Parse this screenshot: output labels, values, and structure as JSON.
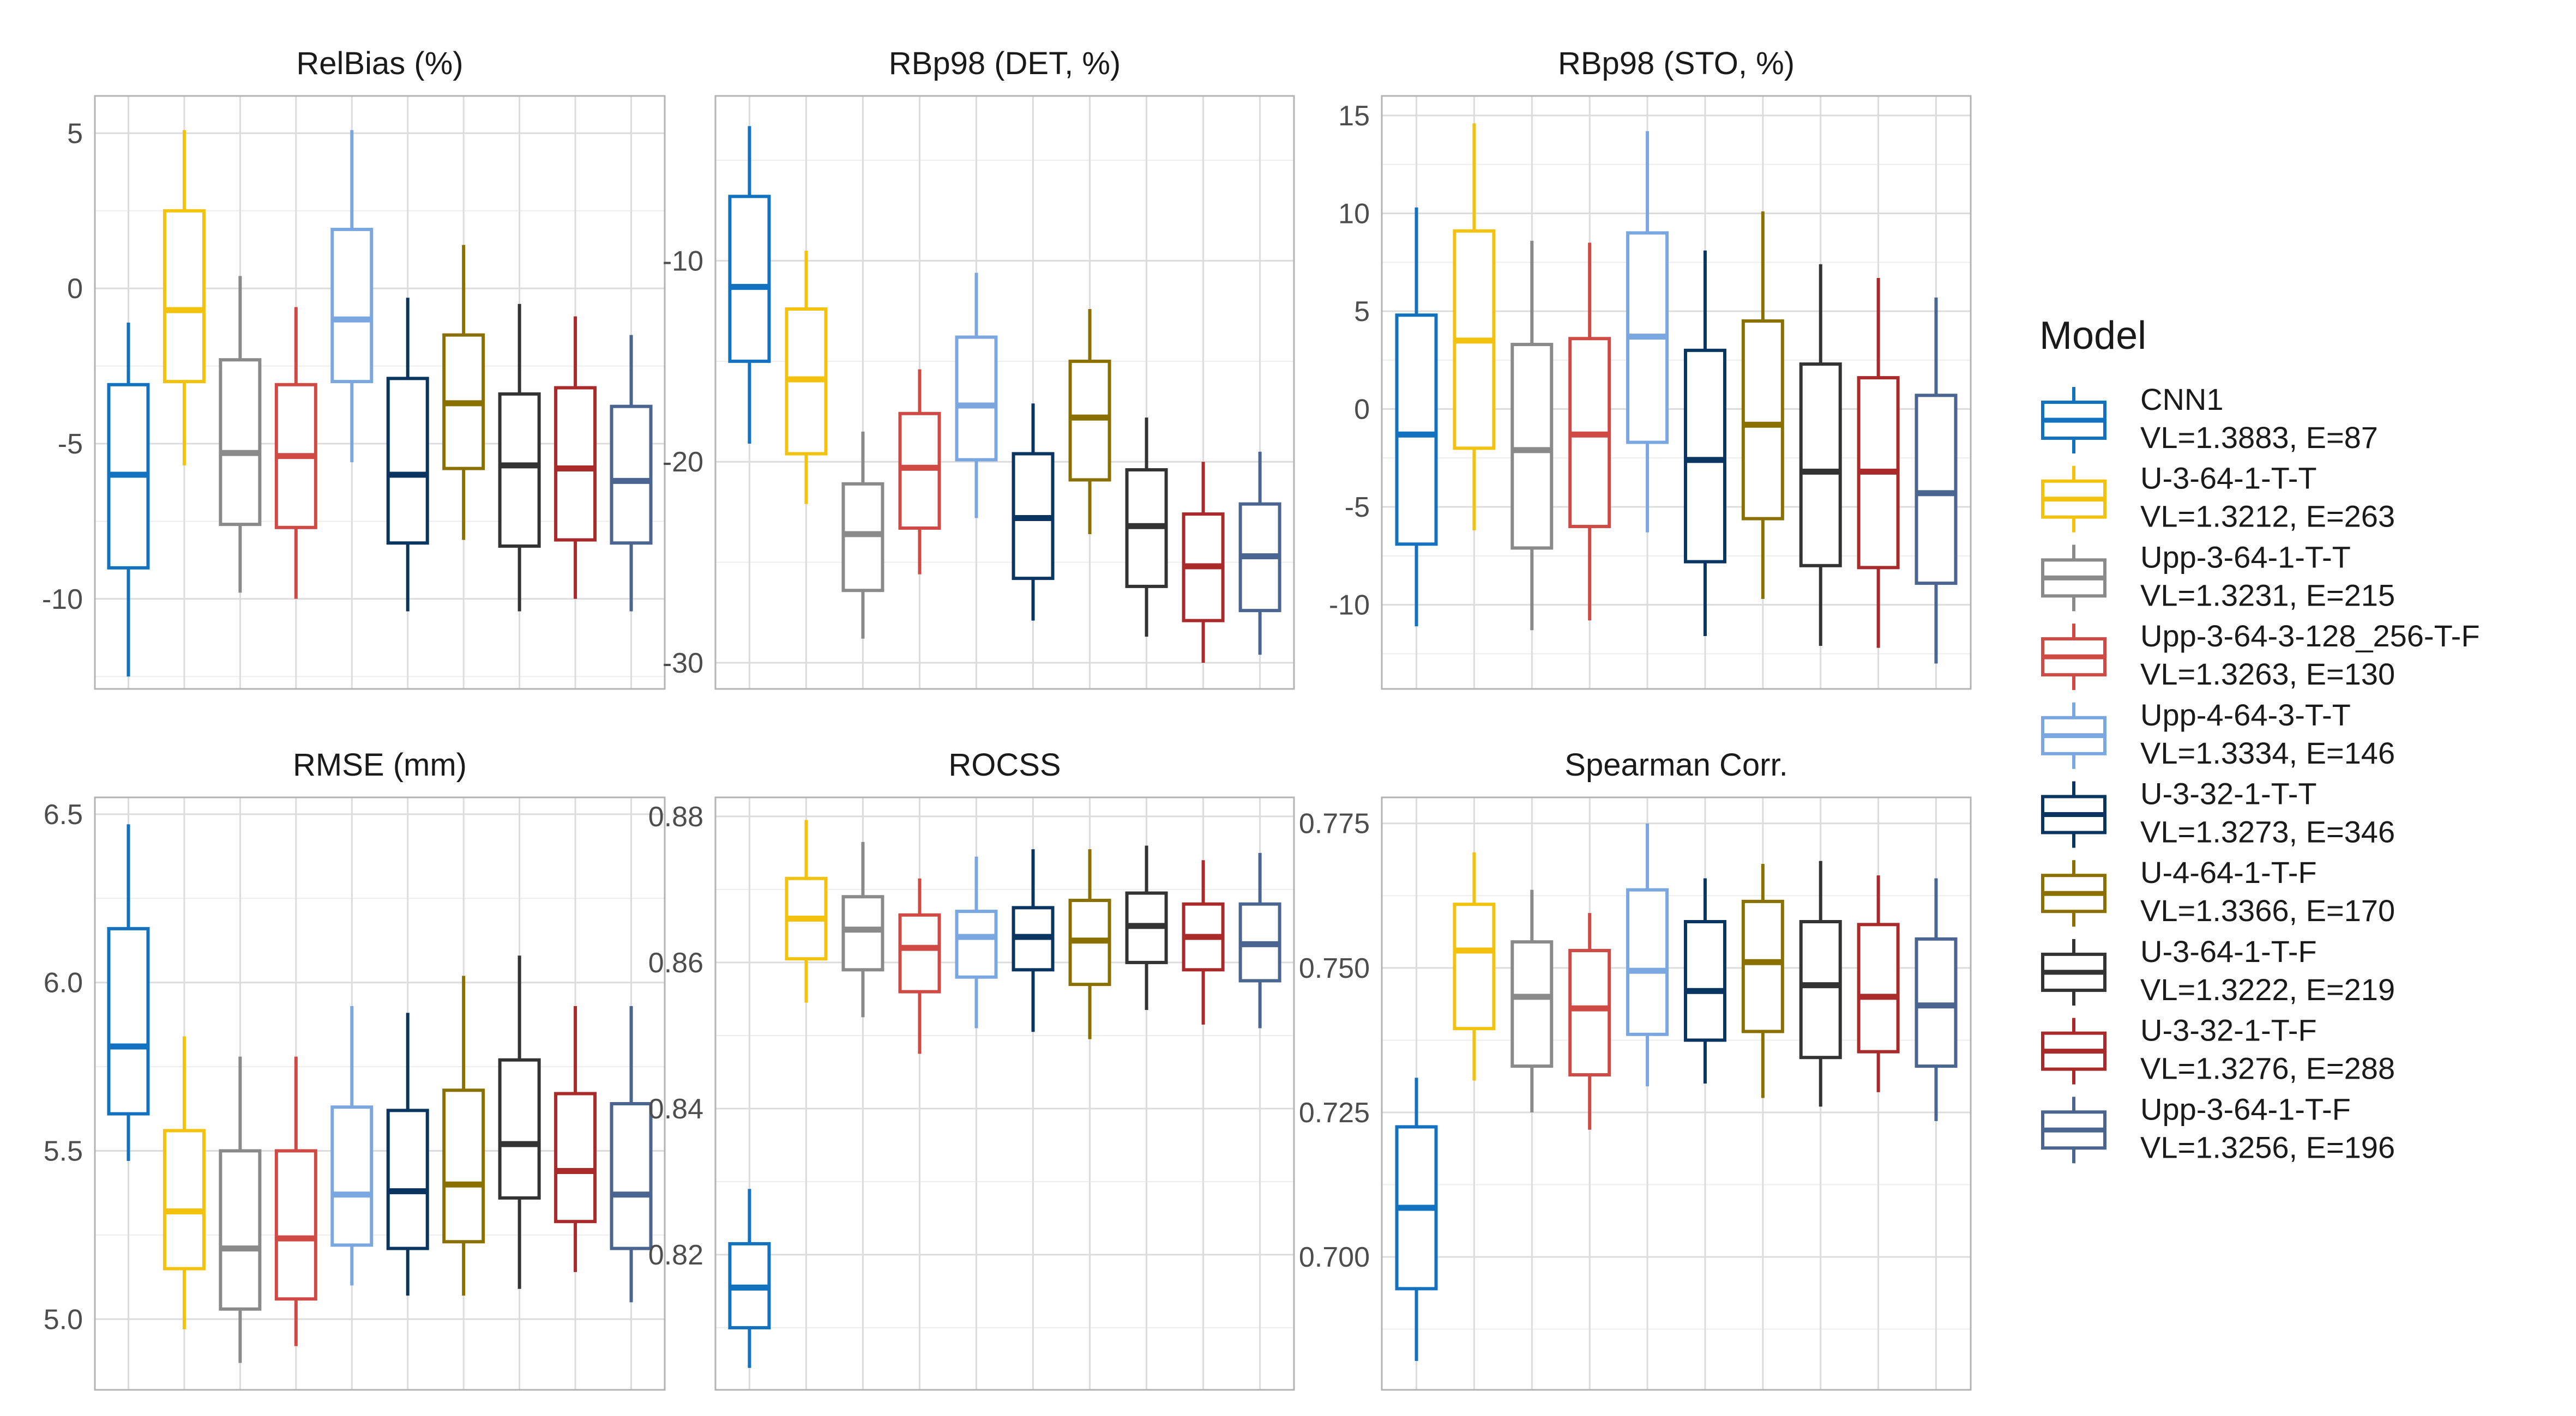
{
  "legend": {
    "title": "Model",
    "entries": [
      {
        "line1": "CNN1",
        "line2": "VL=1.3883, E=87",
        "color": "#1272c0"
      },
      {
        "line1": "U-3-64-1-T-T",
        "line2": "VL=1.3212, E=263",
        "color": "#f3c20e"
      },
      {
        "line1": "Upp-3-64-1-T-T",
        "line2": "VL=1.3231, E=215",
        "color": "#8a8a8a"
      },
      {
        "line1": "Upp-3-64-3-128_256-T-F",
        "line2": "VL=1.3263, E=130",
        "color": "#d04a45"
      },
      {
        "line1": "Upp-4-64-3-T-T",
        "line2": "VL=1.3334, E=146",
        "color": "#7ba7e0"
      },
      {
        "line1": "U-3-32-1-T-T",
        "line2": "VL=1.3273, E=346",
        "color": "#0a3560"
      },
      {
        "line1": "U-4-64-1-T-F",
        "line2": "VL=1.3366, E=170",
        "color": "#8a7000"
      },
      {
        "line1": "U-3-64-1-T-F",
        "line2": "VL=1.3222, E=219",
        "color": "#333333"
      },
      {
        "line1": "U-3-32-1-T-F",
        "line2": "VL=1.3276, E=288",
        "color": "#a82a2a"
      },
      {
        "line1": "Upp-3-64-1-T-F",
        "line2": "VL=1.3256, E=196",
        "color": "#4a6590"
      }
    ]
  },
  "chart_data": [
    {
      "type": "boxplot",
      "title": "RelBias (%)",
      "xlabel": "",
      "ylabel": "",
      "ylim": [
        -12.9,
        6.2
      ],
      "yticks": [
        -10,
        -5,
        0,
        5
      ],
      "ytick_labels": [
        "-10",
        "-5",
        "0",
        "5"
      ],
      "grid": true,
      "boxes": [
        {
          "series": "CNN1",
          "whisker_low": -12.5,
          "q1": -9.0,
          "median": -6.0,
          "q3": -3.1,
          "whisker_high": -1.1
        },
        {
          "series": "U-3-64-1-T-T",
          "whisker_low": -5.7,
          "q1": -3.0,
          "median": -0.7,
          "q3": 2.5,
          "whisker_high": 5.1
        },
        {
          "series": "Upp-3-64-1-T-T",
          "whisker_low": -9.8,
          "q1": -7.6,
          "median": -5.3,
          "q3": -2.3,
          "whisker_high": 0.4
        },
        {
          "series": "Upp-3-64-3-128_256-T-F",
          "whisker_low": -10.0,
          "q1": -7.7,
          "median": -5.4,
          "q3": -3.1,
          "whisker_high": -0.6
        },
        {
          "series": "Upp-4-64-3-T-T",
          "whisker_low": -5.6,
          "q1": -3.0,
          "median": -1.0,
          "q3": 1.9,
          "whisker_high": 5.1
        },
        {
          "series": "U-3-32-1-T-T",
          "whisker_low": -10.4,
          "q1": -8.2,
          "median": -6.0,
          "q3": -2.9,
          "whisker_high": -0.3
        },
        {
          "series": "U-4-64-1-T-F",
          "whisker_low": -8.1,
          "q1": -5.8,
          "median": -3.7,
          "q3": -1.5,
          "whisker_high": 1.4
        },
        {
          "series": "U-3-64-1-T-F",
          "whisker_low": -10.4,
          "q1": -8.3,
          "median": -5.7,
          "q3": -3.4,
          "whisker_high": -0.5
        },
        {
          "series": "U-3-32-1-T-F",
          "whisker_low": -10.0,
          "q1": -8.1,
          "median": -5.8,
          "q3": -3.2,
          "whisker_high": -0.9
        },
        {
          "series": "Upp-3-64-1-T-F",
          "whisker_low": -10.4,
          "q1": -8.2,
          "median": -6.2,
          "q3": -3.8,
          "whisker_high": -1.5
        }
      ]
    },
    {
      "type": "boxplot",
      "title": "RBp98 (DET, %)",
      "xlabel": "",
      "ylabel": "",
      "ylim": [
        -31.3,
        -1.8
      ],
      "yticks": [
        -30,
        -20,
        -10
      ],
      "ytick_labels": [
        "-30",
        "-20",
        "-10"
      ],
      "grid": true,
      "boxes": [
        {
          "series": "CNN1",
          "whisker_low": -19.1,
          "q1": -15.0,
          "median": -11.3,
          "q3": -6.8,
          "whisker_high": -3.3
        },
        {
          "series": "U-3-64-1-T-T",
          "whisker_low": -22.1,
          "q1": -19.6,
          "median": -15.9,
          "q3": -12.4,
          "whisker_high": -9.5
        },
        {
          "series": "Upp-3-64-1-T-T",
          "whisker_low": -28.8,
          "q1": -26.4,
          "median": -23.6,
          "q3": -21.1,
          "whisker_high": -18.5
        },
        {
          "series": "Upp-3-64-3-128_256-T-F",
          "whisker_low": -25.6,
          "q1": -23.3,
          "median": -20.3,
          "q3": -17.6,
          "whisker_high": -15.4
        },
        {
          "series": "Upp-4-64-3-T-T",
          "whisker_low": -22.8,
          "q1": -19.9,
          "median": -17.2,
          "q3": -13.8,
          "whisker_high": -10.6
        },
        {
          "series": "U-3-32-1-T-T",
          "whisker_low": -27.9,
          "q1": -25.8,
          "median": -22.8,
          "q3": -19.6,
          "whisker_high": -17.1
        },
        {
          "series": "U-4-64-1-T-F",
          "whisker_low": -23.6,
          "q1": -20.9,
          "median": -17.8,
          "q3": -15.0,
          "whisker_high": -12.4
        },
        {
          "series": "U-3-64-1-T-F",
          "whisker_low": -28.7,
          "q1": -26.2,
          "median": -23.2,
          "q3": -20.4,
          "whisker_high": -17.8
        },
        {
          "series": "U-3-32-1-T-F",
          "whisker_low": -30.0,
          "q1": -27.9,
          "median": -25.2,
          "q3": -22.6,
          "whisker_high": -20.0
        },
        {
          "series": "Upp-3-64-1-T-F",
          "whisker_low": -29.6,
          "q1": -27.4,
          "median": -24.7,
          "q3": -22.1,
          "whisker_high": -19.5
        }
      ]
    },
    {
      "type": "boxplot",
      "title": "RBp98 (STO, %)",
      "xlabel": "",
      "ylabel": "",
      "ylim": [
        -14.3,
        16.0
      ],
      "yticks": [
        -10,
        -5,
        0,
        5,
        10,
        15
      ],
      "ytick_labels": [
        "-10",
        "-5",
        "0",
        "5",
        "10",
        "15"
      ],
      "grid": true,
      "boxes": [
        {
          "series": "CNN1",
          "whisker_low": -11.1,
          "q1": -6.9,
          "median": -1.3,
          "q3": 4.8,
          "whisker_high": 10.3
        },
        {
          "series": "U-3-64-1-T-T",
          "whisker_low": -6.2,
          "q1": -2.0,
          "median": 3.5,
          "q3": 9.1,
          "whisker_high": 14.6
        },
        {
          "series": "Upp-3-64-1-T-T",
          "whisker_low": -11.3,
          "q1": -7.1,
          "median": -2.1,
          "q3": 3.3,
          "whisker_high": 8.6
        },
        {
          "series": "Upp-3-64-3-128_256-T-F",
          "whisker_low": -10.8,
          "q1": -6.0,
          "median": -1.3,
          "q3": 3.6,
          "whisker_high": 8.5
        },
        {
          "series": "Upp-4-64-3-T-T",
          "whisker_low": -6.3,
          "q1": -1.7,
          "median": 3.7,
          "q3": 9.0,
          "whisker_high": 14.2
        },
        {
          "series": "U-3-32-1-T-T",
          "whisker_low": -11.6,
          "q1": -7.8,
          "median": -2.6,
          "q3": 3.0,
          "whisker_high": 8.1
        },
        {
          "series": "U-4-64-1-T-F",
          "whisker_low": -9.7,
          "q1": -5.6,
          "median": -0.8,
          "q3": 4.5,
          "whisker_high": 10.1
        },
        {
          "series": "U-3-64-1-T-F",
          "whisker_low": -12.1,
          "q1": -8.0,
          "median": -3.2,
          "q3": 2.3,
          "whisker_high": 7.4
        },
        {
          "series": "U-3-32-1-T-F",
          "whisker_low": -12.2,
          "q1": -8.1,
          "median": -3.2,
          "q3": 1.6,
          "whisker_high": 6.7
        },
        {
          "series": "Upp-3-64-1-T-F",
          "whisker_low": -13.0,
          "q1": -8.9,
          "median": -4.3,
          "q3": 0.7,
          "whisker_high": 5.7
        }
      ]
    },
    {
      "type": "boxplot",
      "title": "RMSE (mm)",
      "xlabel": "",
      "ylabel": "",
      "ylim": [
        4.79,
        6.55
      ],
      "yticks": [
        5.0,
        5.5,
        6.0,
        6.5
      ],
      "ytick_labels": [
        "5.0",
        "5.5",
        "6.0",
        "6.5"
      ],
      "grid": true,
      "boxes": [
        {
          "series": "CNN1",
          "whisker_low": 5.47,
          "q1": 5.61,
          "median": 5.81,
          "q3": 6.16,
          "whisker_high": 6.47
        },
        {
          "series": "U-3-64-1-T-T",
          "whisker_low": 4.97,
          "q1": 5.15,
          "median": 5.32,
          "q3": 5.56,
          "whisker_high": 5.84
        },
        {
          "series": "Upp-3-64-1-T-T",
          "whisker_low": 4.87,
          "q1": 5.03,
          "median": 5.21,
          "q3": 5.5,
          "whisker_high": 5.78
        },
        {
          "series": "Upp-3-64-3-128_256-T-F",
          "whisker_low": 4.92,
          "q1": 5.06,
          "median": 5.24,
          "q3": 5.5,
          "whisker_high": 5.78
        },
        {
          "series": "Upp-4-64-3-T-T",
          "whisker_low": 5.1,
          "q1": 5.22,
          "median": 5.37,
          "q3": 5.63,
          "whisker_high": 5.93
        },
        {
          "series": "U-3-32-1-T-T",
          "whisker_low": 5.07,
          "q1": 5.21,
          "median": 5.38,
          "q3": 5.62,
          "whisker_high": 5.91
        },
        {
          "series": "U-4-64-1-T-F",
          "whisker_low": 5.07,
          "q1": 5.23,
          "median": 5.4,
          "q3": 5.68,
          "whisker_high": 6.02
        },
        {
          "series": "U-3-64-1-T-F",
          "whisker_low": 5.09,
          "q1": 5.36,
          "median": 5.52,
          "q3": 5.77,
          "whisker_high": 6.08
        },
        {
          "series": "U-3-32-1-T-F",
          "whisker_low": 5.14,
          "q1": 5.29,
          "median": 5.44,
          "q3": 5.67,
          "whisker_high": 5.93
        },
        {
          "series": "Upp-3-64-1-T-F",
          "whisker_low": 5.05,
          "q1": 5.21,
          "median": 5.37,
          "q3": 5.64,
          "whisker_high": 5.93
        }
      ]
    },
    {
      "type": "boxplot",
      "title": "ROCSS",
      "xlabel": "",
      "ylabel": "",
      "ylim": [
        0.8015,
        0.8826
      ],
      "yticks": [
        0.82,
        0.84,
        0.86,
        0.88
      ],
      "ytick_labels": [
        "0.82",
        "0.84",
        "0.86",
        "0.88"
      ],
      "grid": true,
      "boxes": [
        {
          "series": "CNN1",
          "whisker_low": 0.8045,
          "q1": 0.81,
          "median": 0.8155,
          "q3": 0.8215,
          "whisker_high": 0.829
        },
        {
          "series": "U-3-64-1-T-T",
          "whisker_low": 0.8545,
          "q1": 0.8605,
          "median": 0.866,
          "q3": 0.8715,
          "whisker_high": 0.8795
        },
        {
          "series": "Upp-3-64-1-T-T",
          "whisker_low": 0.8525,
          "q1": 0.859,
          "median": 0.8645,
          "q3": 0.869,
          "whisker_high": 0.8765
        },
        {
          "series": "Upp-3-64-3-128_256-T-F",
          "whisker_low": 0.8475,
          "q1": 0.856,
          "median": 0.862,
          "q3": 0.8665,
          "whisker_high": 0.8715
        },
        {
          "series": "Upp-4-64-3-T-T",
          "whisker_low": 0.851,
          "q1": 0.858,
          "median": 0.8635,
          "q3": 0.867,
          "whisker_high": 0.8745
        },
        {
          "series": "U-3-32-1-T-T",
          "whisker_low": 0.8505,
          "q1": 0.859,
          "median": 0.8635,
          "q3": 0.8675,
          "whisker_high": 0.8755
        },
        {
          "series": "U-4-64-1-T-F",
          "whisker_low": 0.8495,
          "q1": 0.857,
          "median": 0.863,
          "q3": 0.8685,
          "whisker_high": 0.8755
        },
        {
          "series": "U-3-64-1-T-F",
          "whisker_low": 0.8535,
          "q1": 0.86,
          "median": 0.865,
          "q3": 0.8695,
          "whisker_high": 0.876
        },
        {
          "series": "U-3-32-1-T-F",
          "whisker_low": 0.8515,
          "q1": 0.859,
          "median": 0.8635,
          "q3": 0.868,
          "whisker_high": 0.874
        },
        {
          "series": "Upp-3-64-1-T-F",
          "whisker_low": 0.851,
          "q1": 0.8575,
          "median": 0.8625,
          "q3": 0.868,
          "whisker_high": 0.875
        }
      ]
    },
    {
      "type": "boxplot",
      "title": "Spearman Corr.",
      "xlabel": "",
      "ylabel": "",
      "ylim": [
        0.677,
        0.7795
      ],
      "yticks": [
        0.7,
        0.725,
        0.75,
        0.775
      ],
      "ytick_labels": [
        "0.700",
        "0.725",
        "0.750",
        "0.775"
      ],
      "grid": true,
      "boxes": [
        {
          "series": "CNN1",
          "whisker_low": 0.682,
          "q1": 0.6945,
          "median": 0.7085,
          "q3": 0.7225,
          "whisker_high": 0.731
        },
        {
          "series": "U-3-64-1-T-T",
          "whisker_low": 0.7305,
          "q1": 0.7395,
          "median": 0.753,
          "q3": 0.761,
          "whisker_high": 0.77
        },
        {
          "series": "Upp-3-64-1-T-T",
          "whisker_low": 0.725,
          "q1": 0.733,
          "median": 0.745,
          "q3": 0.7545,
          "whisker_high": 0.7635
        },
        {
          "series": "Upp-3-64-3-128_256-T-F",
          "whisker_low": 0.722,
          "q1": 0.7315,
          "median": 0.743,
          "q3": 0.753,
          "whisker_high": 0.7595
        },
        {
          "series": "Upp-4-64-3-T-T",
          "whisker_low": 0.7295,
          "q1": 0.7385,
          "median": 0.7495,
          "q3": 0.7635,
          "whisker_high": 0.775
        },
        {
          "series": "U-3-32-1-T-T",
          "whisker_low": 0.73,
          "q1": 0.7375,
          "median": 0.746,
          "q3": 0.758,
          "whisker_high": 0.7655
        },
        {
          "series": "U-4-64-1-T-F",
          "whisker_low": 0.7275,
          "q1": 0.739,
          "median": 0.751,
          "q3": 0.7615,
          "whisker_high": 0.768
        },
        {
          "series": "U-3-64-1-T-F",
          "whisker_low": 0.726,
          "q1": 0.7345,
          "median": 0.747,
          "q3": 0.758,
          "whisker_high": 0.7685
        },
        {
          "series": "U-3-32-1-T-F",
          "whisker_low": 0.7285,
          "q1": 0.7355,
          "median": 0.745,
          "q3": 0.7575,
          "whisker_high": 0.766
        },
        {
          "series": "Upp-3-64-1-T-F",
          "whisker_low": 0.7235,
          "q1": 0.733,
          "median": 0.7435,
          "q3": 0.755,
          "whisker_high": 0.7655
        }
      ]
    }
  ]
}
